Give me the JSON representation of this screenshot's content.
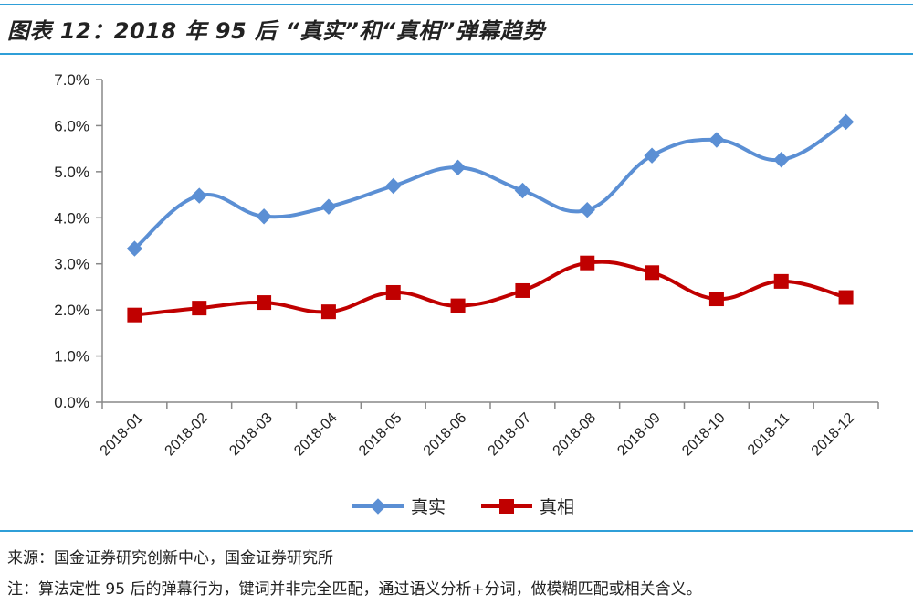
{
  "header": {
    "title": "图表 12：2018 年 95 后 “真实”和“真相”弹幕趋势"
  },
  "chart_data": {
    "type": "line",
    "title": "图表 12：2018 年 95 后 “真实”和“真相”弹幕趋势",
    "xlabel": "",
    "ylabel": "",
    "categories": [
      "2018-01",
      "2018-02",
      "2018-03",
      "2018-04",
      "2018-05",
      "2018-06",
      "2018-07",
      "2018-08",
      "2018-09",
      "2018-10",
      "2018-11",
      "2018-12"
    ],
    "ylim": [
      0,
      7
    ],
    "yticks": [
      0,
      1,
      2,
      3,
      4,
      5,
      6,
      7
    ],
    "ytick_labels": [
      "0.0%",
      "1.0%",
      "2.0%",
      "3.0%",
      "4.0%",
      "5.0%",
      "6.0%",
      "7.0%"
    ],
    "series": [
      {
        "name": "真实",
        "color": "#5b8fd4",
        "marker": "diamond",
        "values": [
          3.33,
          4.48,
          4.03,
          4.24,
          4.69,
          5.09,
          4.59,
          4.17,
          5.35,
          5.69,
          5.26,
          6.08
        ]
      },
      {
        "name": "真相",
        "color": "#c00000",
        "marker": "square",
        "values": [
          1.89,
          2.04,
          2.16,
          1.96,
          2.38,
          2.09,
          2.42,
          3.02,
          2.81,
          2.24,
          2.62,
          2.27
        ]
      }
    ],
    "legend": "bottom-center",
    "grid": false
  },
  "footer": {
    "source": "来源：国金证券研究创新中心，国金证券研究所",
    "note": "注：算法定性 95 后的弹幕行为，键词并非完全匹配，通过语义分析+分词，做模糊匹配或相关含义。"
  }
}
